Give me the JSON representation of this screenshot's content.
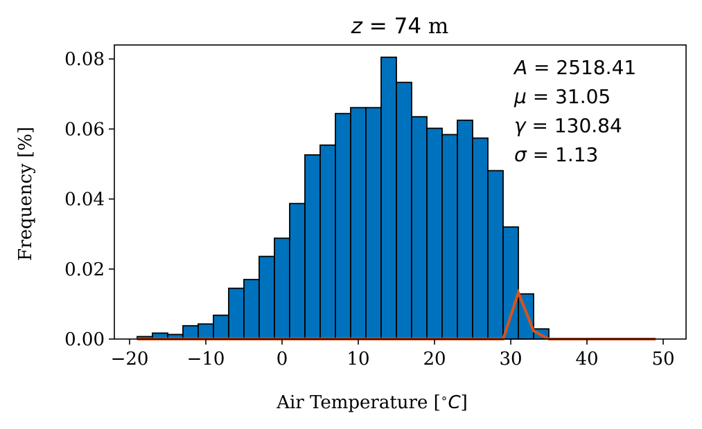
{
  "chart_data": {
    "type": "bar",
    "title": "z = 74 m",
    "title_parts": {
      "var": "z",
      "eq": " = ",
      "num": "74",
      "unit": " m"
    },
    "xlabel": "Air Temperature [∘C]",
    "xlabel_parts": {
      "text": "Air Temperature [",
      "deg": "∘",
      "unit": "C",
      "close": "]"
    },
    "ylabel": "Frequency [%]",
    "xlim": [
      -22,
      53
    ],
    "ylim": [
      0,
      0.084
    ],
    "xticks": [
      -20,
      -10,
      0,
      10,
      20,
      30,
      40,
      50
    ],
    "xtick_labels": [
      "−20",
      "−10",
      "0",
      "10",
      "20",
      "30",
      "40",
      "50"
    ],
    "yticks": [
      0,
      0.02,
      0.04,
      0.06,
      0.08
    ],
    "ytick_labels": [
      "0.00",
      "0.02",
      "0.04",
      "0.06",
      "0.08"
    ],
    "grid": false,
    "bar_color": "#0072BD",
    "bar_edge_color": "#000000",
    "fit_color": "#D95319",
    "bins": [
      {
        "x0": -19,
        "x1": -17,
        "value": 0.0007
      },
      {
        "x0": -17,
        "x1": -15,
        "value": 0.0017
      },
      {
        "x0": -15,
        "x1": -13,
        "value": 0.0013
      },
      {
        "x0": -13,
        "x1": -11,
        "value": 0.0038
      },
      {
        "x0": -11,
        "x1": -9,
        "value": 0.0043
      },
      {
        "x0": -9,
        "x1": -7,
        "value": 0.0068
      },
      {
        "x0": -7,
        "x1": -5,
        "value": 0.0145
      },
      {
        "x0": -5,
        "x1": -3,
        "value": 0.017
      },
      {
        "x0": -3,
        "x1": -1,
        "value": 0.0236
      },
      {
        "x0": -1,
        "x1": 1,
        "value": 0.0288
      },
      {
        "x0": 1,
        "x1": 3,
        "value": 0.0387
      },
      {
        "x0": 3,
        "x1": 5,
        "value": 0.0526
      },
      {
        "x0": 5,
        "x1": 7,
        "value": 0.0554
      },
      {
        "x0": 7,
        "x1": 9,
        "value": 0.0644
      },
      {
        "x0": 9,
        "x1": 11,
        "value": 0.0661
      },
      {
        "x0": 11,
        "x1": 13,
        "value": 0.0661
      },
      {
        "x0": 13,
        "x1": 15,
        "value": 0.0805
      },
      {
        "x0": 15,
        "x1": 17,
        "value": 0.0733
      },
      {
        "x0": 17,
        "x1": 19,
        "value": 0.0635
      },
      {
        "x0": 19,
        "x1": 21,
        "value": 0.0602
      },
      {
        "x0": 21,
        "x1": 23,
        "value": 0.0584
      },
      {
        "x0": 23,
        "x1": 25,
        "value": 0.0625
      },
      {
        "x0": 25,
        "x1": 27,
        "value": 0.0574
      },
      {
        "x0": 27,
        "x1": 29,
        "value": 0.0481
      },
      {
        "x0": 29,
        "x1": 31,
        "value": 0.032
      },
      {
        "x0": 31,
        "x1": 33,
        "value": 0.0129
      },
      {
        "x0": 33,
        "x1": 35,
        "value": 0.0029
      }
    ],
    "fit_line": {
      "x": [
        -19,
        -17,
        -15,
        -13,
        -11,
        -9,
        -7,
        -5,
        -3,
        -1,
        1,
        3,
        5,
        7,
        9,
        11,
        13,
        15,
        17,
        19,
        21,
        23,
        25,
        27,
        29,
        31,
        33,
        35,
        37,
        39,
        41,
        43,
        45,
        47,
        49
      ],
      "y": [
        0,
        0,
        0,
        0,
        0,
        0,
        0,
        0,
        0,
        0,
        0,
        0,
        0,
        0,
        0,
        0,
        0,
        0,
        0,
        0,
        0,
        0,
        0,
        0,
        0,
        0.0133,
        0.0023,
        0,
        0,
        0,
        0,
        0,
        0,
        0,
        0
      ]
    },
    "annotations": [
      {
        "sym": "A",
        "text": " = 2518.41"
      },
      {
        "sym": "μ",
        "text": " = 31.05"
      },
      {
        "sym": "γ",
        "text": " = 130.84"
      },
      {
        "sym": "σ",
        "text": " = 1.13"
      }
    ]
  }
}
